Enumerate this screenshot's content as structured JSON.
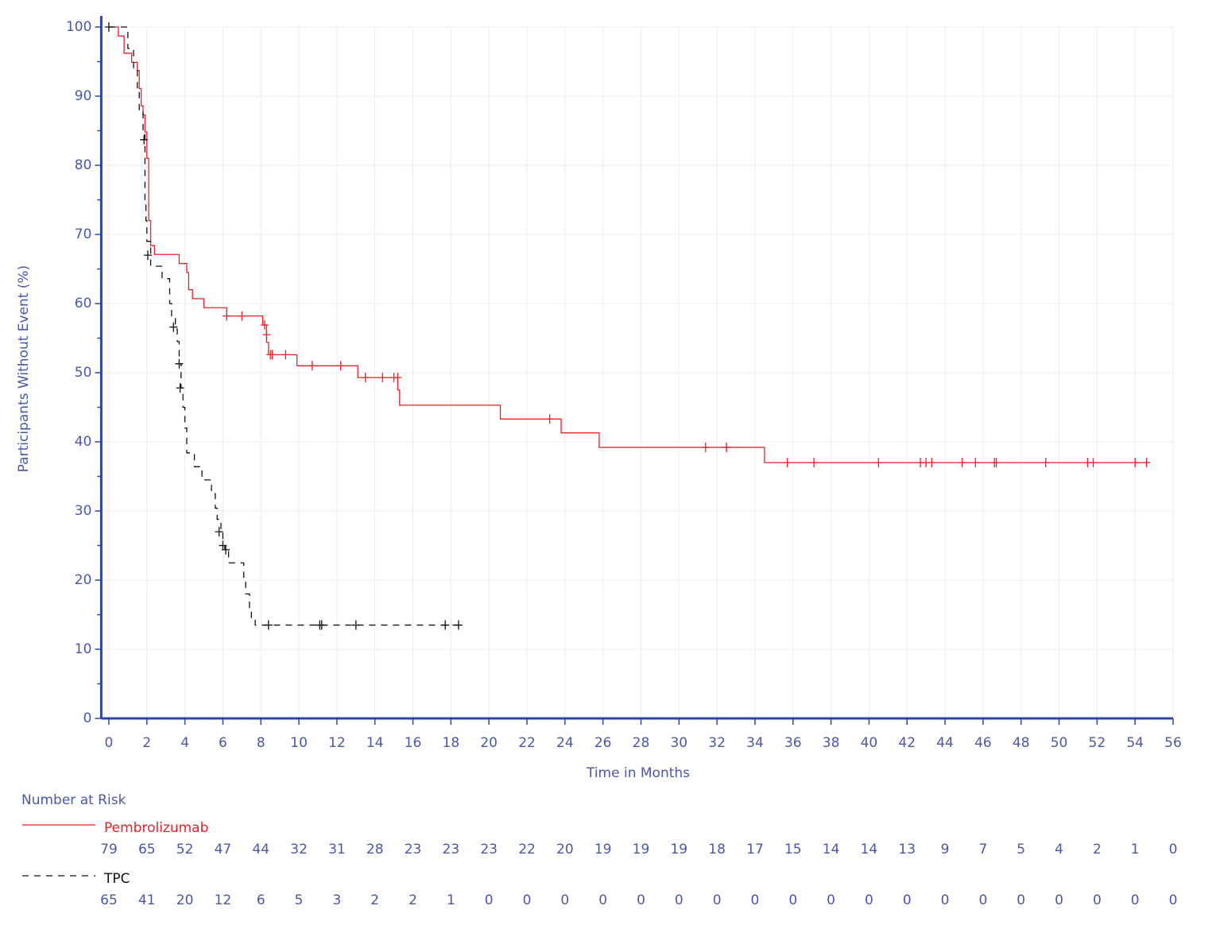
{
  "chart_data": {
    "type": "km",
    "xlabel": "Time in Months",
    "ylabel": "Participants Without Event (%)",
    "xlim": [
      -0.4,
      56
    ],
    "ylim": [
      0,
      100
    ],
    "xticks": [
      0,
      2,
      4,
      6,
      8,
      10,
      12,
      14,
      16,
      18,
      20,
      22,
      24,
      26,
      28,
      30,
      32,
      34,
      36,
      38,
      40,
      42,
      44,
      46,
      48,
      50,
      52,
      54,
      56
    ],
    "yticks": [
      0,
      10,
      20,
      30,
      40,
      50,
      60,
      70,
      80,
      90,
      100
    ],
    "yminorticks": [
      5,
      15,
      25,
      35,
      45,
      55,
      65,
      75,
      85,
      95
    ],
    "grid": true,
    "axis_color": "#2f45a6",
    "series": [
      {
        "name": "Pembrolizumab",
        "color": "#e8212a",
        "dash": false,
        "x": [
          0,
          0.5,
          0.8,
          1.2,
          1.5,
          1.6,
          1.7,
          1.8,
          1.9,
          2.0,
          2.1,
          2.2,
          2.4,
          3.7,
          4.1,
          4.2,
          4.4,
          5.0,
          6.2,
          8.1,
          8.3,
          8.4,
          9.9,
          13.1,
          15.2,
          15.3,
          20.6,
          23.8,
          25.8,
          34.5,
          54.6
        ],
        "values": [
          100,
          98.7,
          96.2,
          94.9,
          93.7,
          91.1,
          88.6,
          87.3,
          84.8,
          81,
          72,
          68.4,
          67.1,
          65.8,
          64.5,
          62,
          60.7,
          59.4,
          58.2,
          56.9,
          54.4,
          52.6,
          51,
          49.3,
          47.5,
          45.3,
          43.3,
          41.3,
          39.2,
          37,
          37
        ],
        "censor_x": [
          6.2,
          7.0,
          8.2,
          8.3,
          8.5,
          8.6,
          9.3,
          10.7,
          12.2,
          13.5,
          14.4,
          15.0,
          15.2,
          23.2,
          31.4,
          32.5,
          35.7,
          37.1,
          40.5,
          42.7,
          43.0,
          43.3,
          44.9,
          45.6,
          46.6,
          46.7,
          49.3,
          51.5,
          51.8,
          54.0,
          54.6
        ],
        "censor_values": [
          58.2,
          58.2,
          56.9,
          55.5,
          52.6,
          52.6,
          52.6,
          51,
          51,
          49.3,
          49.3,
          49.3,
          49.3,
          43.3,
          39.2,
          39.2,
          37,
          37,
          37,
          37,
          37,
          37,
          37,
          37,
          37,
          37,
          37,
          37,
          37,
          37,
          37
        ]
      },
      {
        "name": "TPC",
        "color": "#111111",
        "dash": true,
        "x": [
          0,
          1.0,
          1.3,
          1.5,
          1.6,
          1.8,
          1.9,
          1.95,
          2.0,
          2.2,
          2.8,
          3.2,
          3.3,
          3.5,
          3.6,
          3.7,
          3.8,
          3.9,
          4.0,
          4.1,
          4.5,
          4.9,
          5.4,
          5.6,
          5.7,
          5.9,
          6.0,
          6.1,
          6.3,
          7.1,
          7.2,
          7.4,
          7.5,
          7.7,
          18.4
        ],
        "values": [
          100,
          96.9,
          93.8,
          90.8,
          87.7,
          84.6,
          75,
          72,
          69,
          65.4,
          63.6,
          60,
          58,
          56.3,
          54.5,
          51.3,
          47.8,
          45,
          42,
          38.4,
          36.4,
          34.5,
          32.5,
          30.4,
          28.8,
          26.8,
          25,
          24.4,
          22.5,
          20.4,
          18,
          15.8,
          14.5,
          13.5,
          13.5
        ],
        "censor_x": [
          0,
          1.85,
          2.05,
          3.4,
          3.7,
          3.75,
          5.8,
          6.0,
          6.15,
          8.4,
          11.1,
          11.2,
          13.0,
          17.7,
          18.4
        ],
        "censor_values": [
          100,
          83.7,
          67,
          56.6,
          51.3,
          47.8,
          27,
          25,
          24.4,
          13.5,
          13.5,
          13.5,
          13.5,
          13.5,
          13.5
        ]
      }
    ],
    "risk_table": {
      "title": "Number at Risk",
      "rows": [
        {
          "values": [
            79,
            65,
            52,
            47,
            44,
            32,
            31,
            28,
            23,
            23,
            23,
            22,
            20,
            19,
            19,
            19,
            18,
            17,
            15,
            14,
            14,
            13,
            9,
            7,
            5,
            4,
            2,
            1,
            0
          ]
        },
        {
          "values": [
            65,
            41,
            20,
            12,
            6,
            5,
            3,
            2,
            2,
            1,
            0,
            0,
            0,
            0,
            0,
            0,
            0,
            0,
            0,
            0,
            0,
            0,
            0,
            0,
            0,
            0,
            0,
            0,
            0
          ]
        }
      ]
    }
  }
}
